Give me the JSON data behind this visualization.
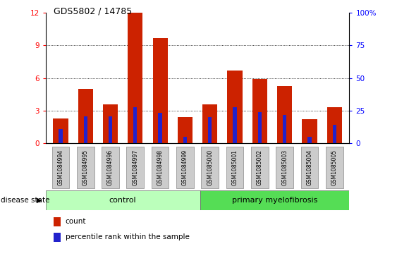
{
  "title": "GDS5802 / 14785",
  "samples": [
    "GSM1084994",
    "GSM1084995",
    "GSM1084996",
    "GSM1084997",
    "GSM1084998",
    "GSM1084999",
    "GSM1085000",
    "GSM1085001",
    "GSM1085002",
    "GSM1085003",
    "GSM1085004",
    "GSM1085005"
  ],
  "count_values": [
    2.3,
    5.0,
    3.6,
    12.0,
    9.7,
    2.4,
    3.6,
    6.7,
    5.9,
    5.3,
    2.2,
    3.3
  ],
  "percentile_values": [
    1.3,
    2.5,
    2.5,
    3.3,
    2.8,
    0.6,
    2.4,
    3.3,
    2.9,
    2.6,
    0.6,
    1.7
  ],
  "bar_color": "#cc2200",
  "blue_color": "#2222cc",
  "control_label": "control",
  "myelofibrosis_label": "primary myelofibrosis",
  "disease_state_label": "disease state",
  "control_bg": "#bbffbb",
  "myelofibrosis_bg": "#55dd55",
  "ylim_left": [
    0,
    12
  ],
  "ylim_right": [
    0,
    100
  ],
  "yticks_left": [
    0,
    3,
    6,
    9,
    12
  ],
  "yticks_right": [
    0,
    25,
    50,
    75,
    100
  ],
  "legend_count": "count",
  "legend_percentile": "percentile rank within the sample",
  "tick_label_bg": "#cccccc",
  "bar_width": 0.6,
  "blue_bar_width": 0.15
}
